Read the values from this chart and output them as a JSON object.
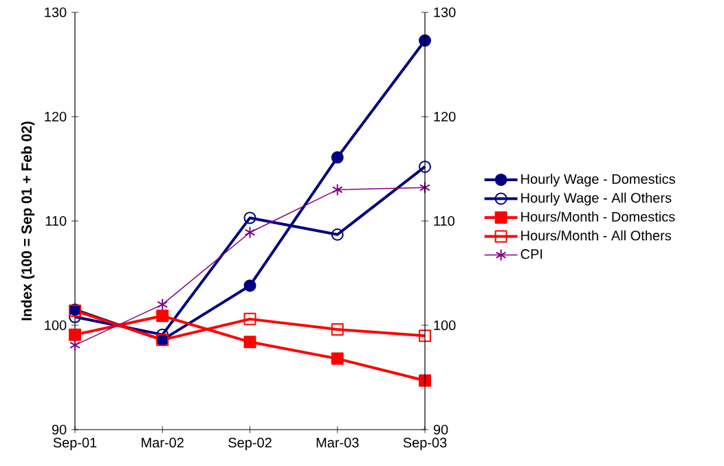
{
  "chart_data": {
    "type": "line",
    "ylabel": "Index (100 = Sep 01 + Feb 02)",
    "categories": [
      "Sep-01",
      "Mar-02",
      "Sep-02",
      "Mar-03",
      "Sep-03"
    ],
    "series": [
      {
        "name": "Hourly Wage - Domestics",
        "color": "#000080",
        "marker": "circle",
        "values": [
          101.5,
          98.6,
          103.8,
          116.1,
          127.3
        ]
      },
      {
        "name": "Hourly Wage - All Others",
        "color": "#000080",
        "marker": "circle",
        "values": [
          100.8,
          99.1,
          110.3,
          108.7,
          115.2
        ]
      },
      {
        "name": "Hours/Month - Domestics",
        "color": "#ff0000",
        "marker": "square",
        "values": [
          99.1,
          100.9,
          98.4,
          96.8,
          94.7
        ]
      },
      {
        "name": "Hours/Month - All Others",
        "color": "#ff0000",
        "marker": "square",
        "values": [
          101.4,
          98.6,
          100.6,
          99.6,
          99.0
        ]
      },
      {
        "name": "CPI",
        "color": "#800080",
        "marker": "cross",
        "values": [
          98.1,
          102.0,
          108.9,
          113.0,
          113.2
        ]
      }
    ],
    "ylim": [
      90,
      130
    ],
    "yticks": [
      90,
      100,
      110,
      120,
      130
    ],
    "y2lim": [
      90,
      130
    ],
    "y2ticks": [
      90,
      100,
      110,
      120,
      130
    ],
    "legend": "right"
  }
}
